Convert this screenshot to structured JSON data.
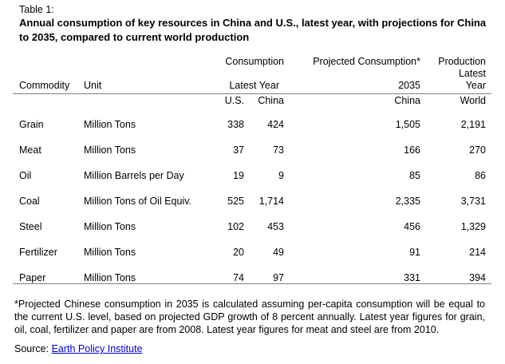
{
  "table_label": "Table 1:",
  "title": "Annual consumption of key resources in China and U.S., latest year, with projections for China to 2035, compared to current world production",
  "headers": {
    "commodity": "Commodity",
    "unit": "Unit",
    "consumption": "Consumption",
    "latest_year": "Latest Year",
    "us": "U.S.",
    "china": "China",
    "projected": "Projected Consumption*",
    "year_2035": "2035",
    "projected_china": "China",
    "production": "Production",
    "production_latest": "Latest",
    "production_year": "Year",
    "world": "World"
  },
  "rows": [
    {
      "commodity": "Grain",
      "unit": "Million Tons",
      "us": "338",
      "china": "424",
      "china_2035": "1,505",
      "world": "2,191"
    },
    {
      "commodity": "Meat",
      "unit": "Million Tons",
      "us": "37",
      "china": "73",
      "china_2035": "166",
      "world": "270"
    },
    {
      "commodity": "Oil",
      "unit": "Million Barrels per Day",
      "us": "19",
      "china": "9",
      "china_2035": "85",
      "world": "86"
    },
    {
      "commodity": "Coal",
      "unit": "Million Tons of Oil Equiv.",
      "us": "525",
      "china": "1,714",
      "china_2035": "2,335",
      "world": "3,731"
    },
    {
      "commodity": "Steel",
      "unit": "Million Tons",
      "us": "102",
      "china": "453",
      "china_2035": "456",
      "world": "1,329"
    },
    {
      "commodity": "Fertilizer",
      "unit": "Million Tons",
      "us": "20",
      "china": "49",
      "china_2035": "91",
      "world": "214"
    },
    {
      "commodity": "Paper",
      "unit": "Million Tons",
      "us": "74",
      "china": "97",
      "china_2035": "331",
      "world": "394"
    }
  ],
  "footnote": "*Projected Chinese consumption in 2035 is calculated assuming per-capita consumption will be equal to the current U.S. level, based on projected GDP growth of 8 percent annually. Latest year figures for grain, oil, coal, fertilizer and paper are from 2008. Latest year figures for meat and steel are from 2010.",
  "source_label": "Source:",
  "source_link": "Earth Policy Institute"
}
